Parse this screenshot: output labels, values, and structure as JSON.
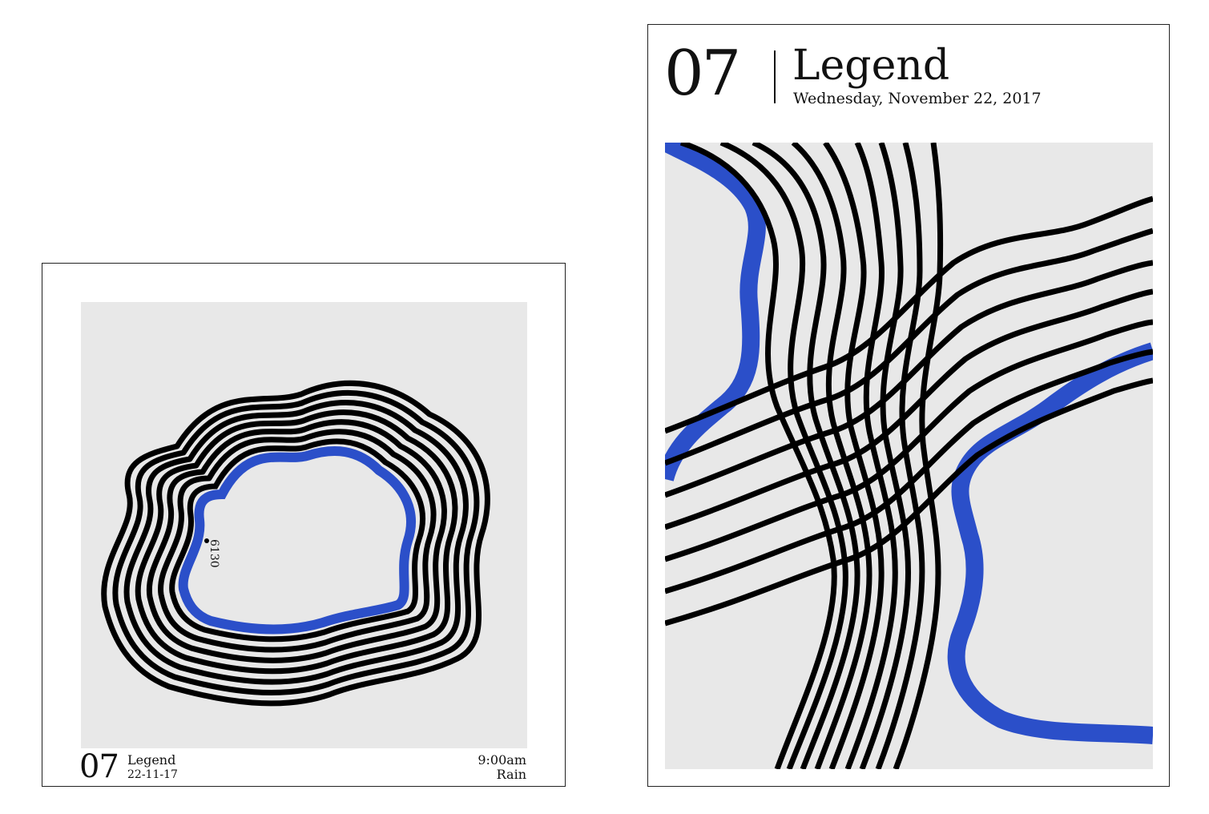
{
  "left_card": {
    "number": "07",
    "title": "Legend",
    "date": "22-11-17",
    "time": "9:00am",
    "weather": "Rain",
    "marker_label": "6130"
  },
  "right_card": {
    "number": "07",
    "title": "Legend",
    "date": "Wednesday, November 22, 2017"
  },
  "colors": {
    "background": "#e8e8e8",
    "line": "#000000",
    "accent_blue": "#2b4fc9"
  }
}
